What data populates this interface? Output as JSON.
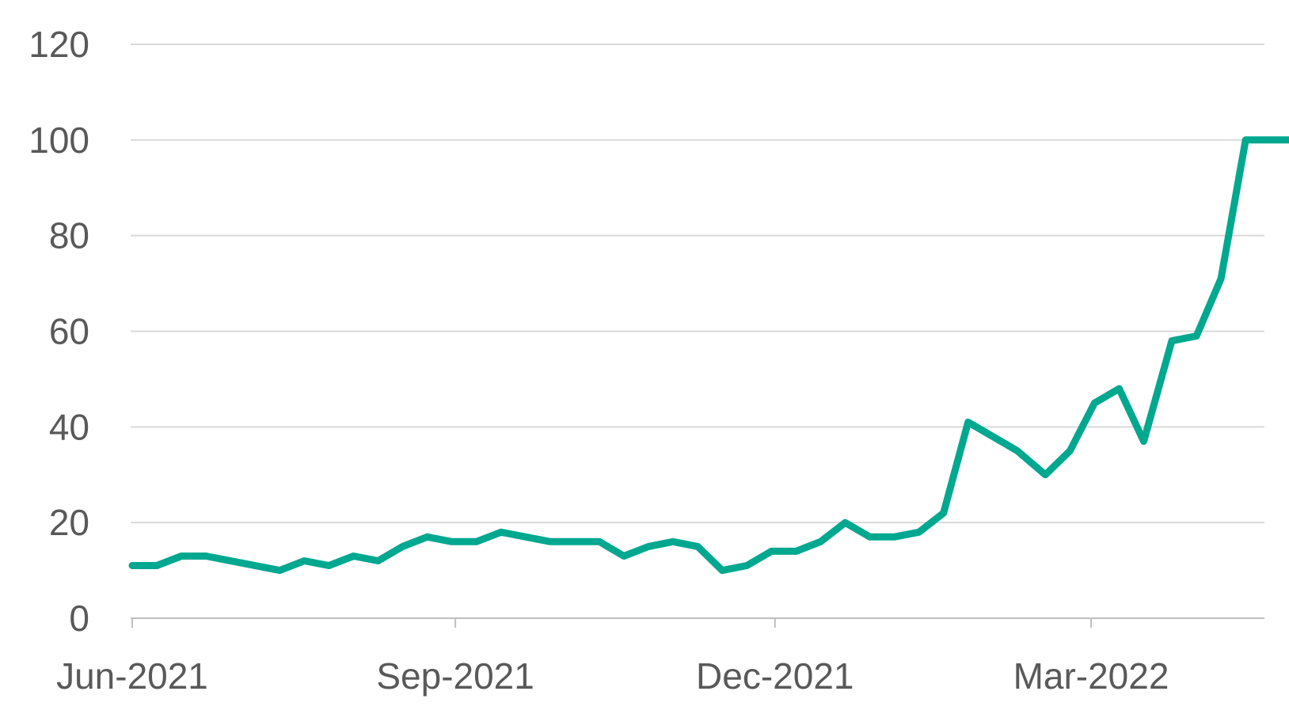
{
  "chart_data": {
    "type": "line",
    "title": "",
    "xlabel": "",
    "ylabel": "",
    "ylim": [
      0,
      120
    ],
    "y_ticks": [
      0,
      20,
      40,
      60,
      80,
      100,
      120
    ],
    "x_tick_labels": [
      {
        "label": "Jun-2021",
        "date": "2021-06-01"
      },
      {
        "label": "Sep-2021",
        "date": "2021-09-01"
      },
      {
        "label": "Dec-2021",
        "date": "2021-12-01"
      },
      {
        "label": "Mar-2022",
        "date": "2022-03-01"
      }
    ],
    "grid": true,
    "legend": "none",
    "colors": {
      "line": "#00A88F",
      "grid": "#D9D9D9",
      "axis": "#BFBFBF",
      "text": "#595959"
    },
    "series": [
      {
        "x": [
          "2021-06-01",
          "2021-06-08",
          "2021-06-15",
          "2021-06-22",
          "2021-07-13",
          "2021-07-20",
          "2021-07-27",
          "2021-08-03",
          "2021-08-10",
          "2021-08-17",
          "2021-08-24",
          "2021-08-31",
          "2021-09-07",
          "2021-09-14",
          "2021-09-28",
          "2021-10-05",
          "2021-10-12",
          "2021-10-19",
          "2021-10-26",
          "2021-11-02",
          "2021-11-09",
          "2021-11-16",
          "2021-11-23",
          "2021-11-30",
          "2021-12-07",
          "2021-12-14",
          "2021-12-21",
          "2021-12-28",
          "2022-01-04",
          "2022-01-11",
          "2022-01-18",
          "2022-01-25",
          "2022-02-08",
          "2022-02-16",
          "2022-02-23",
          "2022-03-02",
          "2022-03-09",
          "2022-03-16",
          "2022-03-24",
          "2022-03-31",
          "2022-04-07",
          "2022-04-14",
          "2022-04-21",
          "2022-04-29"
        ],
        "y": [
          11,
          11,
          13,
          13,
          10,
          12,
          11,
          13,
          12,
          15,
          17,
          16,
          16,
          18,
          16,
          16,
          16,
          13,
          15,
          16,
          15,
          10,
          11,
          14,
          14,
          16,
          20,
          17,
          17,
          18,
          22,
          41,
          35,
          30,
          35,
          45,
          48,
          37,
          58,
          59,
          71,
          100,
          100,
          100
        ]
      }
    ]
  }
}
